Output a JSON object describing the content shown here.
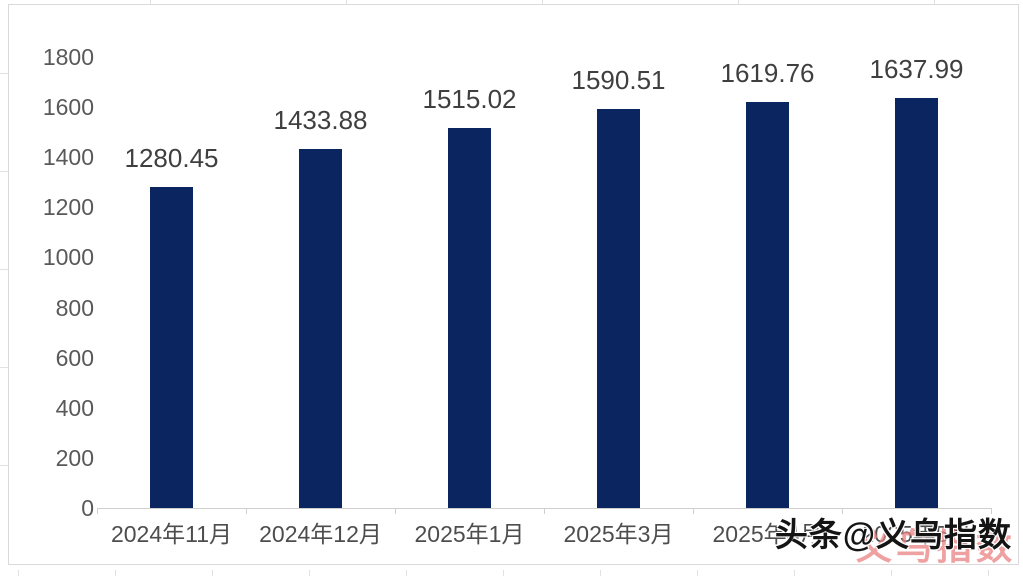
{
  "chart_data": {
    "type": "bar",
    "title": "",
    "xlabel": "",
    "ylabel": "",
    "categories": [
      "2024年11月",
      "2024年12月",
      "2025年1月",
      "2025年3月",
      "2025年4月",
      "2025年5月"
    ],
    "values": [
      1280.45,
      1433.88,
      1515.02,
      1590.51,
      1619.76,
      1637.99
    ],
    "value_labels": [
      "1280.45",
      "1433.88",
      "1515.02",
      "1590.51",
      "1619.76",
      "1637.99"
    ],
    "ylim": [
      0,
      1800
    ],
    "yticks": [
      0,
      200,
      400,
      600,
      800,
      1000,
      1200,
      1400,
      1600,
      1800
    ],
    "grid": "off",
    "legend": "none",
    "bar_color": "#0b2560"
  },
  "colors": {
    "panel_border": "#d9d9d9",
    "axis_line": "#d0cece",
    "ytick_text": "#595959",
    "xtick_text": "#4d4d4d",
    "value_text": "#3f3f3f",
    "background": "#ffffff"
  },
  "watermark": {
    "text": "头条@义乌指数",
    "echo_text": "义乌指数",
    "text_color": "#141414",
    "echo_color": "#e98282"
  }
}
